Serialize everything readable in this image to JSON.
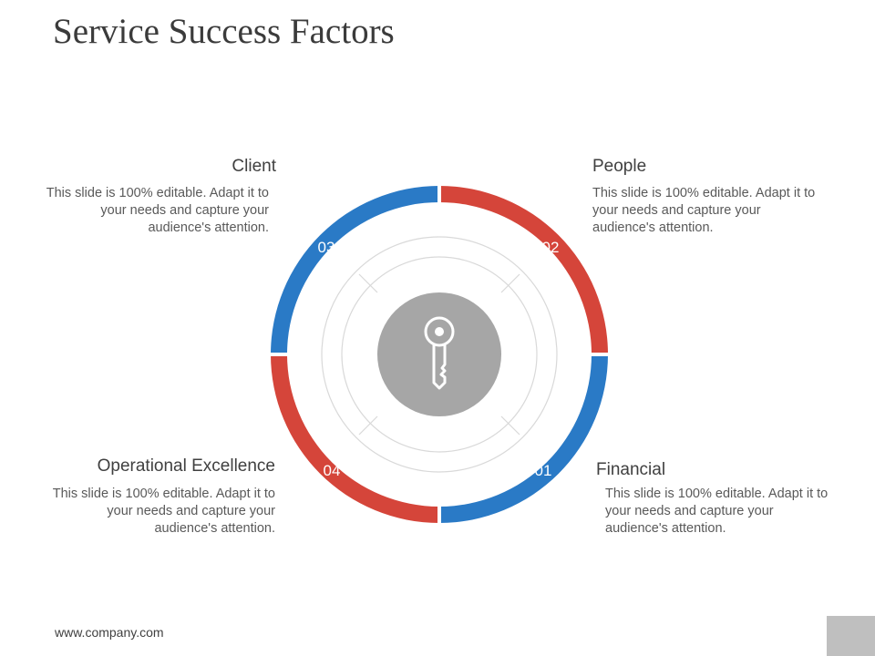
{
  "slide": {
    "title": "Service Success Factors",
    "footer_url": "www.company.com"
  },
  "colors": {
    "blue": "#2a7ac6",
    "red": "#d5453a",
    "center_gray": "#a6a6a6",
    "ring_line": "#d9d9d9"
  },
  "factors": [
    {
      "number": "01",
      "heading": "Financial",
      "description": "This slide is 100% editable. Adapt it to your needs and capture your audience's attention.",
      "color": "#2a7ac6"
    },
    {
      "number": "02",
      "heading": "People",
      "description": "This slide is 100% editable. Adapt it to your needs and capture your audience's attention.",
      "color": "#d5453a"
    },
    {
      "number": "03",
      "heading": "Client",
      "description": "This slide is 100% editable. Adapt it to your needs and capture your audience's attention.",
      "color": "#2a7ac6"
    },
    {
      "number": "04",
      "heading": "Operational Excellence",
      "description": "This slide is 100% editable. Adapt it to your needs and capture your audience's attention.",
      "color": "#d5453a"
    }
  ],
  "center": {
    "icon": "key-icon"
  }
}
